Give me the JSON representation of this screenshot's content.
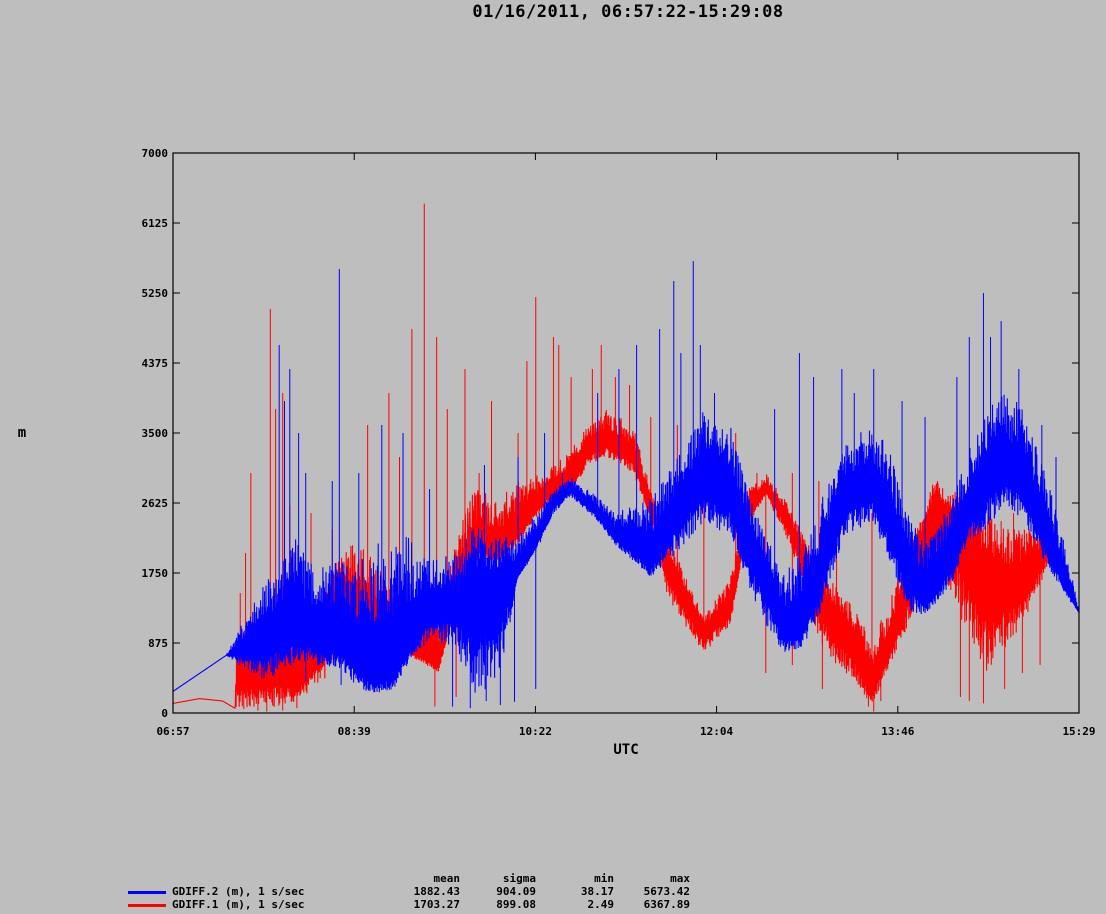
{
  "chart_data": {
    "type": "line",
    "title": "01/16/2011, 06:57:22-15:29:08",
    "xlabel": "UTC",
    "ylabel": "m",
    "x_ticks": [
      "06:57",
      "08:39",
      "10:22",
      "12:04",
      "13:46",
      "15:29"
    ],
    "y_ticks": [
      "0",
      "875",
      "1750",
      "2625",
      "3500",
      "4375",
      "5250",
      "6125",
      "7000"
    ],
    "ylim": [
      0,
      7000
    ],
    "grid": false,
    "legend_position": "bottom-left",
    "stats_headers": [
      "mean",
      "sigma",
      "min",
      "max"
    ],
    "series": [
      {
        "name": "GDIFF.2 (m), 1 s/sec",
        "color": "#0000ff",
        "mean": "1882.43",
        "sigma": "904.09",
        "min": "38.17",
        "max": "5673.42",
        "envelope_minutes": [
          0,
          30,
          50,
          60,
          70,
          80,
          95,
          105,
          115,
          125,
          135,
          145,
          160,
          170,
          185,
          195,
          205,
          215,
          225,
          240,
          250,
          260,
          270,
          285,
          300,
          315,
          325,
          335,
          345,
          355,
          365,
          375,
          380,
          395,
          405,
          415,
          425,
          440,
          450,
          460,
          470,
          480,
          495,
          505,
          512
        ],
        "center": [
          270,
          720,
          850,
          1000,
          1020,
          950,
          850,
          600,
          450,
          500,
          900,
          1250,
          1350,
          1350,
          1500,
          1700,
          2100,
          2600,
          2800,
          2500,
          2200,
          2050,
          1900,
          2500,
          2900,
          2750,
          2100,
          1600,
          1000,
          1000,
          1600,
          2400,
          2700,
          2800,
          2400,
          1700,
          1400,
          1900,
          2500,
          2900,
          3050,
          2900,
          2100,
          1550,
          1250
        ],
        "low": [
          270,
          720,
          400,
          500,
          650,
          600,
          550,
          300,
          250,
          300,
          700,
          900,
          800,
          200,
          400,
          1700,
          2000,
          2500,
          2700,
          2400,
          2100,
          1900,
          1700,
          2000,
          2400,
          2200,
          1600,
          1100,
          750,
          800,
          1200,
          1900,
          2200,
          2400,
          1900,
          1300,
          1200,
          1600,
          2100,
          2300,
          2600,
          2400,
          1800,
          1450,
          1250
        ],
        "high": [
          270,
          720,
          1600,
          1900,
          2200,
          1900,
          2000,
          1900,
          2100,
          2300,
          2200,
          1900,
          2000,
          2400,
          2200,
          2200,
          2500,
          2800,
          2950,
          2700,
          2500,
          2600,
          2700,
          3200,
          3800,
          3600,
          2800,
          2200,
          1800,
          2000,
          2600,
          3100,
          3400,
          3600,
          3300,
          2500,
          2100,
          2700,
          3300,
          3800,
          4100,
          3800,
          2900,
          2000,
          1300
        ],
        "spikes": [
          [
            60,
            4600
          ],
          [
            63,
            3900
          ],
          [
            66,
            4300
          ],
          [
            71,
            3500
          ],
          [
            75,
            3000
          ],
          [
            90,
            2900
          ],
          [
            94,
            5550
          ],
          [
            105,
            3000
          ],
          [
            118,
            3600
          ],
          [
            130,
            3500
          ],
          [
            145,
            2800
          ],
          [
            176,
            3100
          ],
          [
            195,
            3200
          ],
          [
            210,
            3500
          ],
          [
            220,
            3000
          ],
          [
            240,
            4000
          ],
          [
            252,
            4300
          ],
          [
            262,
            4600
          ],
          [
            275,
            4800
          ],
          [
            283,
            5400
          ],
          [
            287,
            4500
          ],
          [
            294,
            5650
          ],
          [
            298,
            4600
          ],
          [
            306,
            4000
          ],
          [
            340,
            3800
          ],
          [
            354,
            4500
          ],
          [
            362,
            4200
          ],
          [
            378,
            4300
          ],
          [
            385,
            4000
          ],
          [
            396,
            4300
          ],
          [
            412,
            3900
          ],
          [
            425,
            3700
          ],
          [
            443,
            4200
          ],
          [
            450,
            4700
          ],
          [
            458,
            5250
          ],
          [
            462,
            4700
          ],
          [
            468,
            4900
          ],
          [
            478,
            4300
          ],
          [
            491,
            3600
          ],
          [
            499,
            3200
          ]
        ],
        "dips": [
          [
            75,
            400
          ],
          [
            95,
            350
          ],
          [
            115,
            420
          ],
          [
            158,
            80
          ],
          [
            168,
            60
          ],
          [
            177,
            150
          ],
          [
            185,
            100
          ],
          [
            193,
            140
          ],
          [
            205,
            300
          ]
        ]
      },
      {
        "name": "GDIFF.1 (m), 1 s/sec",
        "color": "#ff0000",
        "mean": "1703.27",
        "sigma": "899.08",
        "min": "2.49",
        "max": "6367.89",
        "envelope_minutes": [
          0,
          15,
          28,
          35,
          36,
          50,
          60,
          70,
          85,
          95,
          105,
          115,
          125,
          135,
          150,
          160,
          170,
          185,
          195,
          210,
          225,
          235,
          245,
          260,
          270,
          280,
          300,
          315,
          325,
          335,
          345,
          355,
          365,
          375,
          385,
          395,
          405,
          420,
          430,
          440,
          445,
          460,
          470,
          480,
          500
        ],
        "center": [
          120,
          180,
          150,
          60,
          400,
          500,
          500,
          400,
          800,
          1500,
          1200,
          900,
          1000,
          800,
          600,
          1500,
          2100,
          2000,
          2300,
          2700,
          2900,
          3300,
          3400,
          3200,
          2600,
          1800,
          1000,
          1300,
          2500,
          2800,
          2500,
          2000,
          1400,
          1100,
          800,
          300,
          800,
          1800,
          2600,
          2300,
          2200,
          1600,
          1550,
          1600,
          2200
        ],
        "low": [
          120,
          180,
          150,
          60,
          80,
          50,
          60,
          150,
          400,
          800,
          800,
          700,
          850,
          700,
          500,
          1300,
          1900,
          1900,
          2100,
          2600,
          2750,
          3100,
          3200,
          3000,
          2400,
          1400,
          750,
          1100,
          2350,
          2700,
          2300,
          1700,
          900,
          600,
          400,
          80,
          600,
          1300,
          1800,
          1500,
          1200,
          500,
          800,
          1100,
          2100
        ],
        "high": [
          120,
          180,
          150,
          60,
          1000,
          900,
          1100,
          1200,
          1600,
          2000,
          2200,
          1900,
          1500,
          1300,
          1300,
          2200,
          2800,
          2700,
          2900,
          3000,
          3300,
          3600,
          3800,
          3600,
          2800,
          2200,
          1200,
          1700,
          2800,
          3000,
          2700,
          2300,
          1900,
          1600,
          1300,
          900,
          1400,
          2400,
          2900,
          2800,
          2800,
          2500,
          2300,
          2300,
          2300
        ],
        "spikes": [
          [
            38,
            1500
          ],
          [
            41,
            2000
          ],
          [
            44,
            3000
          ],
          [
            55,
            5050
          ],
          [
            58,
            3800
          ],
          [
            62,
            4000
          ],
          [
            66,
            2600
          ],
          [
            78,
            2500
          ],
          [
            90,
            2300
          ],
          [
            110,
            3600
          ],
          [
            122,
            4000
          ],
          [
            128,
            3200
          ],
          [
            135,
            4800
          ],
          [
            142,
            6367
          ],
          [
            149,
            4700
          ],
          [
            155,
            3800
          ],
          [
            165,
            4300
          ],
          [
            173,
            3000
          ],
          [
            180,
            3900
          ],
          [
            195,
            3500
          ],
          [
            200,
            4400
          ],
          [
            205,
            5200
          ],
          [
            215,
            4700
          ],
          [
            218,
            4600
          ],
          [
            225,
            4200
          ],
          [
            237,
            4300
          ],
          [
            242,
            4600
          ],
          [
            250,
            4200
          ],
          [
            258,
            4100
          ],
          [
            270,
            3700
          ],
          [
            285,
            3600
          ],
          [
            300,
            3500
          ],
          [
            318,
            3500
          ],
          [
            330,
            3000
          ],
          [
            350,
            3000
          ],
          [
            365,
            2900
          ],
          [
            375,
            2800
          ],
          [
            395,
            2500
          ],
          [
            432,
            2900
          ],
          [
            440,
            2300
          ],
          [
            455,
            2200
          ],
          [
            468,
            2400
          ],
          [
            475,
            2500
          ]
        ],
        "dips": [
          [
            40,
            50
          ],
          [
            48,
            30
          ],
          [
            53,
            20
          ],
          [
            62,
            30
          ],
          [
            70,
            60
          ],
          [
            148,
            80
          ],
          [
            160,
            200
          ],
          [
            335,
            500
          ],
          [
            350,
            600
          ],
          [
            367,
            300
          ],
          [
            393,
            80
          ],
          [
            396,
            20
          ],
          [
            400,
            150
          ],
          [
            445,
            200
          ],
          [
            450,
            150
          ],
          [
            458,
            120
          ],
          [
            470,
            300
          ],
          [
            480,
            500
          ],
          [
            490,
            600
          ]
        ]
      }
    ]
  }
}
